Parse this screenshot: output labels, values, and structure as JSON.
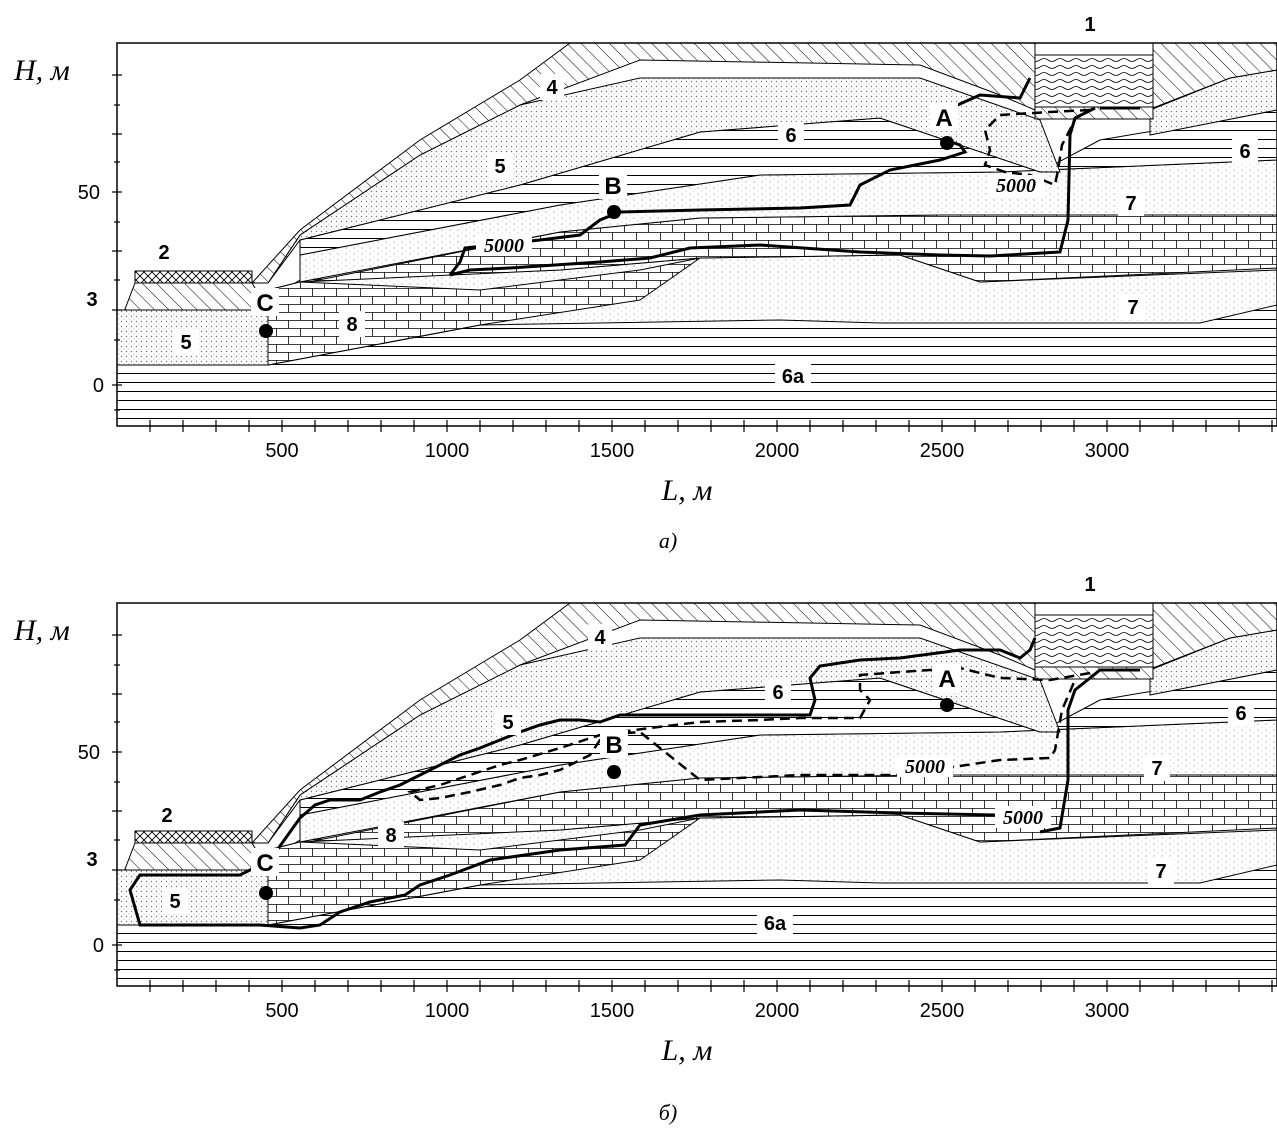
{
  "axes": {
    "y_label": "H, м",
    "x_label": "L, м",
    "x_ticks": [
      "500",
      "1000",
      "1500",
      "2000",
      "2500",
      "3000"
    ],
    "y_ticks": [
      "50",
      "0"
    ]
  },
  "panels": [
    {
      "caption": "а)",
      "layers": {
        "l1": "1",
        "l2": "2",
        "l3": "3",
        "l4": "4",
        "l5a": "5",
        "l5b": "5",
        "l6a": "6",
        "l6b": "6",
        "l7a": "7",
        "l7b": "7",
        "l8": "8",
        "l6aa": "6а"
      },
      "points": {
        "A": "A",
        "B": "B",
        "C": "C"
      },
      "isolines": [
        "5000",
        "5000"
      ]
    },
    {
      "caption": "б)",
      "layers": {
        "l1": "1",
        "l2": "2",
        "l3": "3",
        "l4": "4",
        "l5a": "5",
        "l5b": "5",
        "l6a": "6",
        "l6b": "6",
        "l7a": "7",
        "l7b": "7",
        "l8": "8",
        "l6aa": "6а"
      },
      "points": {
        "A": "A",
        "B": "B",
        "C": "C"
      },
      "isolines": [
        "5000",
        "5000"
      ]
    }
  ],
  "colors": {
    "line": "#000000",
    "fill": "#ffffff"
  }
}
